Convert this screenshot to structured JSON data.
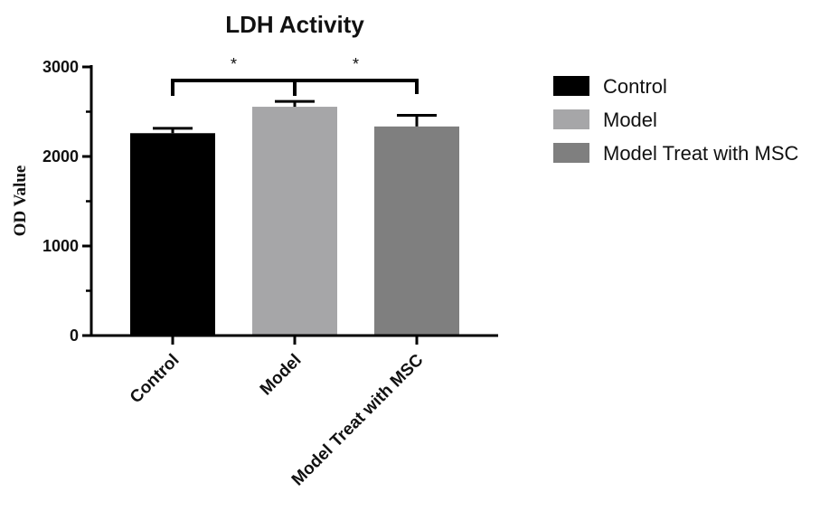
{
  "chart_data": {
    "type": "bar",
    "title": "LDH Activity",
    "ylabel": "OD Value",
    "xlabel": "",
    "ylim": [
      0,
      3000
    ],
    "yticks": [
      0,
      1000,
      2000,
      3000
    ],
    "categories": [
      "Control",
      "Model",
      "Model Treat with MSC"
    ],
    "values": [
      2260,
      2555,
      2335
    ],
    "errors": [
      55,
      60,
      125
    ],
    "colors": [
      "#000000",
      "#a6a6a8",
      "#7f7f7f"
    ],
    "legend": {
      "position": "right",
      "entries": [
        "Control",
        "Model",
        "Model Treat with MSC"
      ]
    },
    "significance": [
      {
        "from": 0,
        "to": 1,
        "label": "*"
      },
      {
        "from": 1,
        "to": 2,
        "label": "*"
      }
    ],
    "grid": false
  }
}
